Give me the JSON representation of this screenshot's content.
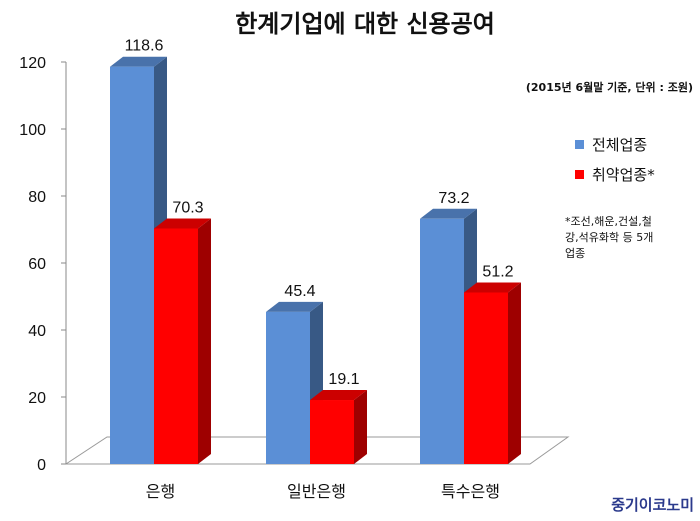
{
  "chart_data": {
    "type": "bar",
    "title": "한계기업에 대한 신용공여",
    "subtitle": "(2015년 6월말 기준, 단위 : 조원)",
    "categories": [
      "은행",
      "일반은행",
      "특수은행"
    ],
    "series": [
      {
        "name": "전체업종",
        "values": [
          118.6,
          45.4,
          73.2
        ],
        "color": "#5b8fd6"
      },
      {
        "name": "취약업종*",
        "values": [
          70.3,
          19.1,
          51.2
        ],
        "color": "#ff0000"
      }
    ],
    "ylim": [
      0,
      120
    ],
    "yticks": [
      0,
      20,
      40,
      60,
      80,
      100,
      120
    ],
    "legend_position": "right",
    "grid": false,
    "footnote_lines": [
      "*조선,해운,건설,철",
      "강,석유화학 등 5개",
      "업종"
    ]
  },
  "brand": "중기이코노미"
}
